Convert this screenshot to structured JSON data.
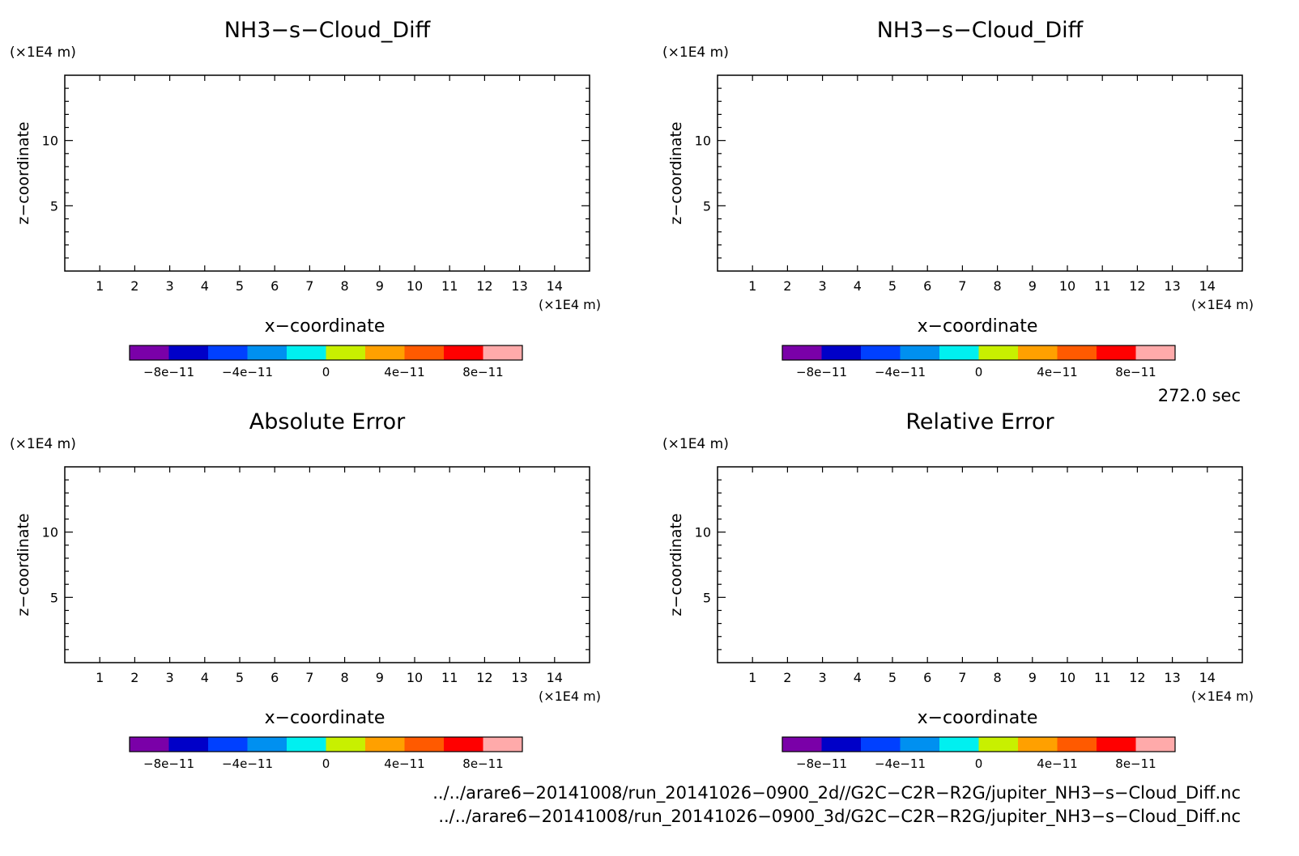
{
  "chart_data": [
    {
      "type": "heatmap",
      "title": "NH3−s−Cloud_Diff",
      "xlabel": "x−coordinate",
      "ylabel": "z−coordinate",
      "x_unit": "(×1E4 m)",
      "y_unit": "(×1E4 m)",
      "xlim": [
        0,
        15
      ],
      "ylim": [
        0,
        15
      ],
      "x_ticks": [
        "1",
        "2",
        "3",
        "4",
        "5",
        "6",
        "7",
        "8",
        "9",
        "10",
        "11",
        "12",
        "13",
        "14"
      ],
      "y_ticks": [
        "5",
        "10"
      ],
      "colorbar": {
        "labels": [
          "−8e−11",
          "−4e−11",
          "0",
          "4e−11",
          "8e−11"
        ]
      },
      "values": []
    },
    {
      "type": "heatmap",
      "title": "NH3−s−Cloud_Diff",
      "xlabel": "x−coordinate",
      "ylabel": "z−coordinate",
      "x_unit": "(×1E4 m)",
      "y_unit": "(×1E4 m)",
      "xlim": [
        0,
        15
      ],
      "ylim": [
        0,
        15
      ],
      "x_ticks": [
        "1",
        "2",
        "3",
        "4",
        "5",
        "6",
        "7",
        "8",
        "9",
        "10",
        "11",
        "12",
        "13",
        "14"
      ],
      "y_ticks": [
        "5",
        "10"
      ],
      "colorbar": {
        "labels": [
          "−8e−11",
          "−4e−11",
          "0",
          "4e−11",
          "8e−11"
        ]
      },
      "values": []
    },
    {
      "type": "heatmap",
      "title": "Absolute Error",
      "xlabel": "x−coordinate",
      "ylabel": "z−coordinate",
      "x_unit": "(×1E4 m)",
      "y_unit": "(×1E4 m)",
      "xlim": [
        0,
        15
      ],
      "ylim": [
        0,
        15
      ],
      "x_ticks": [
        "1",
        "2",
        "3",
        "4",
        "5",
        "6",
        "7",
        "8",
        "9",
        "10",
        "11",
        "12",
        "13",
        "14"
      ],
      "y_ticks": [
        "5",
        "10"
      ],
      "colorbar": {
        "labels": [
          "−8e−11",
          "−4e−11",
          "0",
          "4e−11",
          "8e−11"
        ]
      },
      "values": []
    },
    {
      "type": "heatmap",
      "title": "Relative Error",
      "xlabel": "x−coordinate",
      "ylabel": "z−coordinate",
      "x_unit": "(×1E4 m)",
      "y_unit": "(×1E4 m)",
      "xlim": [
        0,
        15
      ],
      "ylim": [
        0,
        15
      ],
      "x_ticks": [
        "1",
        "2",
        "3",
        "4",
        "5",
        "6",
        "7",
        "8",
        "9",
        "10",
        "11",
        "12",
        "13",
        "14"
      ],
      "y_ticks": [
        "5",
        "10"
      ],
      "colorbar": {
        "labels": [
          "−8e−11",
          "−4e−11",
          "0",
          "4e−11",
          "8e−11"
        ]
      },
      "values": []
    }
  ],
  "colorbar_colors": [
    "#7a00a8",
    "#0000c8",
    "#0040ff",
    "#0090f0",
    "#00f0f0",
    "#c8f000",
    "#ffa000",
    "#ff5a00",
    "#ff0000",
    "#ffaaaa"
  ],
  "time_label": "272.0 sec",
  "file_paths": [
    "../../arare6−20141008/run_20141026−0900_2d//G2C−C2R−R2G/jupiter_NH3−s−Cloud_Diff.nc",
    "../../arare6−20141008/run_20141026−0900_3d/G2C−C2R−R2G/jupiter_NH3−s−Cloud_Diff.nc"
  ]
}
